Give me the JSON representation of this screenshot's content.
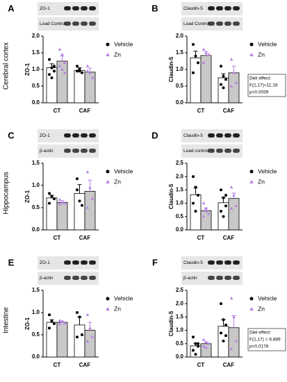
{
  "row_labels": [
    "Cerebral cortex",
    "Hippocampus",
    "Intestine"
  ],
  "chart_data": [
    {
      "type": "bar",
      "panel": "A",
      "blot_labels": [
        "ZO-1",
        "Load Control"
      ],
      "y_label": "ZO-1",
      "categories": [
        "CT",
        "CAF"
      ],
      "series": [
        {
          "name": "Vehicle",
          "color": "#ffffff",
          "point_color": "#000000",
          "values": [
            1.05,
            0.97
          ],
          "errors": [
            0.12,
            0.08
          ],
          "points": [
            [
              1.3,
              1.05,
              0.95,
              0.85,
              0.75,
              1.1
            ],
            [
              1.1,
              0.95,
              0.9,
              0.95,
              1.0
            ]
          ]
        },
        {
          "name": "Zn",
          "color": "#c8c8c8",
          "point_color": "#b57ee6",
          "values": [
            1.25,
            0.92
          ],
          "errors": [
            0.15,
            0.12
          ],
          "points": [
            [
              1.6,
              1.45,
              1.2,
              1.1,
              1.0,
              0.9
            ],
            [
              1.1,
              0.9,
              0.75,
              0.95
            ]
          ]
        }
      ],
      "ylim": [
        0,
        2
      ],
      "yticks": [
        {
          "value": 0,
          "label": "0.0"
        },
        0.5,
        {
          "value": 1,
          "label": "1.0"
        },
        1.5,
        {
          "value": 2,
          "label": "2.0"
        }
      ]
    },
    {
      "type": "bar",
      "panel": "B",
      "blot_labels": [
        "Claudin-5",
        "Load Control"
      ],
      "y_label": "Claudin-5",
      "categories": [
        "CT",
        "CAF"
      ],
      "series": [
        {
          "name": "Vehicle",
          "color": "#ffffff",
          "point_color": "#000000",
          "values": [
            1.35,
            0.75
          ],
          "errors": [
            0.2,
            0.12
          ],
          "points": [
            [
              1.75,
              1.4,
              1.2,
              0.9
            ],
            [
              1.1,
              0.8,
              0.7,
              0.55,
              0.45
            ]
          ]
        },
        {
          "name": "Zn",
          "color": "#c8c8c8",
          "point_color": "#b57ee6",
          "values": [
            1.42,
            0.9
          ],
          "errors": [
            0.12,
            0.2
          ],
          "points": [
            [
              1.6,
              1.5,
              1.45,
              1.2
            ],
            [
              1.3,
              0.9,
              0.6,
              0.5
            ]
          ]
        }
      ],
      "ylim": [
        0,
        2
      ],
      "yticks": [
        {
          "value": 0,
          "label": "0.0"
        },
        0.5,
        {
          "value": 1,
          "label": "1.0"
        },
        1.5,
        {
          "value": 2,
          "label": "2.0"
        }
      ],
      "annotation": [
        "Diet effect:",
        "F(1,17)=11.16",
        "p=0.0039"
      ]
    },
    {
      "type": "bar",
      "panel": "C",
      "blot_labels": [
        "ZO-1",
        "β-actin"
      ],
      "y_label": "ZO-1",
      "categories": [
        "CT",
        "CAF"
      ],
      "series": [
        {
          "name": "Vehicle",
          "color": "#ffffff",
          "point_color": "#000000",
          "values": [
            0.72,
            0.82
          ],
          "errors": [
            0.06,
            0.2
          ],
          "points": [
            [
              0.82,
              0.75,
              0.7,
              0.6
            ],
            [
              1.15,
              0.65,
              0.55,
              0.9
            ]
          ]
        },
        {
          "name": "Zn",
          "color": "#c8c8c8",
          "point_color": "#b57ee6",
          "values": [
            0.62,
            0.87
          ],
          "errors": [
            0.04,
            0.25
          ],
          "points": [
            [
              0.68,
              0.62,
              0.6,
              0.58
            ],
            [
              1.3,
              0.95,
              0.7,
              0.5
            ]
          ]
        }
      ],
      "ylim": [
        0,
        1.5
      ],
      "yticks": [
        {
          "value": 0,
          "label": "0.0"
        },
        0.5,
        {
          "value": 1,
          "label": "1.0"
        },
        1.5
      ]
    },
    {
      "type": "bar",
      "panel": "D",
      "blot_labels": [
        "Claudin-5",
        "Load control"
      ],
      "y_label": "Claudin-5",
      "categories": [
        "CT",
        "CAF"
      ],
      "series": [
        {
          "name": "Vehicle",
          "color": "#ffffff",
          "point_color": "#000000",
          "values": [
            1.32,
            1.02
          ],
          "errors": [
            0.25,
            0.2
          ],
          "points": [
            [
              2.0,
              1.6,
              1.3,
              1.0,
              0.7
            ],
            [
              1.5,
              1.2,
              0.9,
              0.7,
              0.5,
              1.3
            ]
          ]
        },
        {
          "name": "Zn",
          "color": "#c8c8c8",
          "point_color": "#b57ee6",
          "values": [
            0.72,
            1.18
          ],
          "errors": [
            0.1,
            0.2
          ],
          "points": [
            [
              1.0,
              0.8,
              0.6,
              0.5,
              0.7
            ],
            [
              1.6,
              1.3,
              0.9,
              0.8
            ]
          ]
        }
      ],
      "ylim": [
        0,
        2.5
      ],
      "yticks": [
        {
          "value": 0,
          "label": "0.0"
        },
        0.5,
        {
          "value": 1,
          "label": "1.0"
        },
        1.5,
        {
          "value": 2,
          "label": "2.0"
        },
        2.5
      ]
    },
    {
      "type": "bar",
      "panel": "E",
      "blot_labels": [
        "ZO-1",
        "β-actin"
      ],
      "y_label": "ZO-1",
      "categories": [
        "CT",
        "CAF"
      ],
      "series": [
        {
          "name": "Vehicle",
          "color": "#ffffff",
          "point_color": "#000000",
          "values": [
            0.78,
            0.72
          ],
          "errors": [
            0.06,
            0.18
          ],
          "points": [
            [
              0.95,
              0.8,
              0.75,
              0.65
            ],
            [
              1.0,
              0.9,
              0.5,
              0.45
            ]
          ]
        },
        {
          "name": "Zn",
          "color": "#c8c8c8",
          "point_color": "#b57ee6",
          "values": [
            0.78,
            0.6
          ],
          "errors": [
            0.03,
            0.18
          ],
          "points": [
            [
              0.82,
              0.8,
              0.76,
              0.74
            ],
            [
              0.95,
              0.65,
              0.45,
              0.35
            ]
          ]
        }
      ],
      "ylim": [
        0,
        1.5
      ],
      "yticks": [
        {
          "value": 0,
          "label": "0.0"
        },
        0.5,
        {
          "value": 1,
          "label": "1.0"
        },
        1.5
      ]
    },
    {
      "type": "bar",
      "panel": "F",
      "blot_labels": [
        "Claudin-5",
        "β-actin"
      ],
      "y_label": "Claudin-5",
      "categories": [
        "CT",
        "CAF"
      ],
      "series": [
        {
          "name": "Vehicle",
          "color": "#ffffff",
          "point_color": "#000000",
          "values": [
            0.42,
            1.15
          ],
          "errors": [
            0.1,
            0.25
          ],
          "points": [
            [
              0.75,
              0.5,
              0.4,
              0.25,
              0.1,
              0.5
            ],
            [
              2.0,
              1.4,
              1.2,
              0.9,
              0.6,
              0.8
            ]
          ]
        },
        {
          "name": "Zn",
          "color": "#c8c8c8",
          "point_color": "#b57ee6",
          "values": [
            0.5,
            1.1
          ],
          "errors": [
            0.07,
            0.45
          ],
          "points": [
            [
              0.65,
              0.55,
              0.5,
              0.4,
              0.35
            ],
            [
              2.2,
              1.5,
              0.6,
              0.3
            ]
          ]
        }
      ],
      "ylim": [
        0,
        2.5
      ],
      "yticks": [
        {
          "value": 0,
          "label": "0.0"
        },
        0.5,
        {
          "value": 1,
          "label": "1.0"
        },
        1.5,
        {
          "value": 2,
          "label": "2.0"
        },
        2.5
      ],
      "annotation": [
        "Diet effect:",
        "F(1,17) = 6.889",
        "p=0.0178"
      ]
    }
  ]
}
